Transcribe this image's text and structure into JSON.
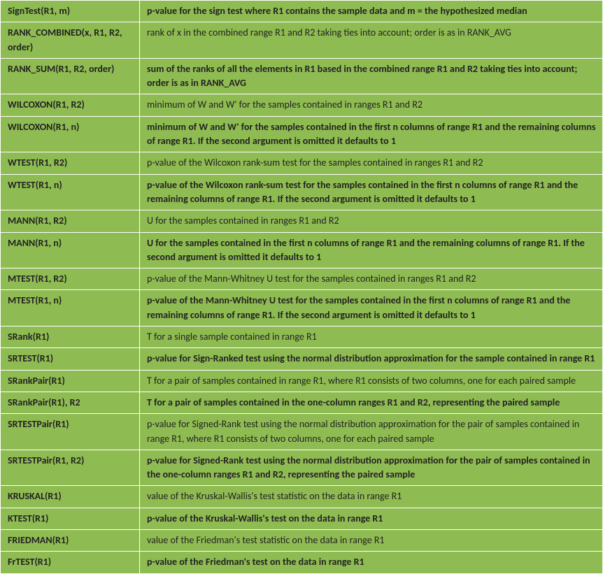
{
  "rows": [
    {
      "fn": "SignTest(R1, m)",
      "desc": "p-value for the sign test where R1 contains the sample data and m = the hypothesized median",
      "alt": true
    },
    {
      "fn": "RANK_COMBINED(x, R1, R2, order)",
      "desc": "rank of x in the combined range R1 and R2 taking ties into account; order is as in RANK_AVG",
      "alt": false
    },
    {
      "fn": "RANK_SUM(R1, R2, order)",
      "desc": "sum of the ranks of all the elements in R1 based in the combined range R1 and R2 taking ties into account; order is as in RANK_AVG",
      "alt": true
    },
    {
      "fn": "WILCOXON(R1, R2)",
      "desc": "minimum of W and W' for the samples contained in ranges R1 and R2",
      "alt": false
    },
    {
      "fn": "WILCOXON(R1, n)",
      "desc": "minimum of W and W' for the samples contained in the first n columns of range R1 and the remaining columns of range R1. If the second argument is omitted it defaults to 1",
      "alt": true
    },
    {
      "fn": "WTEST(R1, R2)",
      "desc": "p-value of the Wilcoxon rank-sum test for the samples contained in ranges R1 and R2",
      "alt": false
    },
    {
      "fn": "WTEST(R1, n)",
      "desc": "p-value of the Wilcoxon rank-sum test for the samples contained in the first n columns of range R1 and the remaining columns of range R1. If the second argument is omitted it defaults to 1",
      "alt": true
    },
    {
      "fn": "MANN(R1, R2)",
      "desc": "U for the samples contained in ranges R1 and R2",
      "alt": false
    },
    {
      "fn": "MANN(R1, n)",
      "desc": "U for the samples contained in the first n columns of range R1 and the remaining columns of range R1. If the second argument is omitted it defaults to 1",
      "alt": true
    },
    {
      "fn": "MTEST(R1, R2)",
      "desc": "p-value of the Mann-Whitney U test for the samples contained in ranges R1 and R2",
      "alt": false
    },
    {
      "fn": "MTEST(R1, n)",
      "desc": "p-value of the Mann-Whitney U test for the samples contained in the first n columns of range R1 and the remaining columns of range R1. If the second argument is omitted it defaults to 1",
      "alt": true
    },
    {
      "fn": "SRank(R1)",
      "desc": "T for a single sample contained in range R1",
      "alt": false
    },
    {
      "fn": "SRTEST(R1)",
      "desc": "p-value for Sign-Ranked test using the normal distribution approximation for the sample contained in range R1",
      "alt": true
    },
    {
      "fn": "SRankPair(R1)",
      "desc": "T for a pair of samples contained in range R1, where R1 consists of two columns, one for each paired sample",
      "alt": false
    },
    {
      "fn": "SRankPair(R1), R2",
      "desc": "T for a pair of samples contained in the one-column ranges R1 and R2, representing the paired sample",
      "alt": true
    },
    {
      "fn": "SRTESTPair(R1)",
      "desc": "p-value for Signed-Rank test using the normal distribution approximation for the pair of samples contained in range R1, where R1 consists of two columns, one for each paired sample",
      "alt": false
    },
    {
      "fn": "SRTESTPair(R1, R2)",
      "desc": "p-value for Signed-Rank test using the normal distribution approximation for the pair of samples contained in the one-column ranges R1 and R2, representing the paired sample",
      "alt": true
    },
    {
      "fn": "KRUSKAL(R1)",
      "desc": "value of the Kruskal-Wallis's test statistic on the data in range R1",
      "alt": false
    },
    {
      "fn": "KTEST(R1)",
      "desc": "p-value of the Kruskal-Wallis's test on the data in range R1",
      "alt": true
    },
    {
      "fn": "FRIEDMAN(R1)",
      "desc": "value of the Friedman's test statistic on the data in range R1",
      "alt": false
    },
    {
      "fn": "FrTEST(R1)",
      "desc": "p-value of the Friedman's test on the data in range R1",
      "alt": true
    }
  ],
  "colors": {
    "row_bg": "#8fbc52",
    "border": "#ffffff",
    "text": "#222222"
  }
}
